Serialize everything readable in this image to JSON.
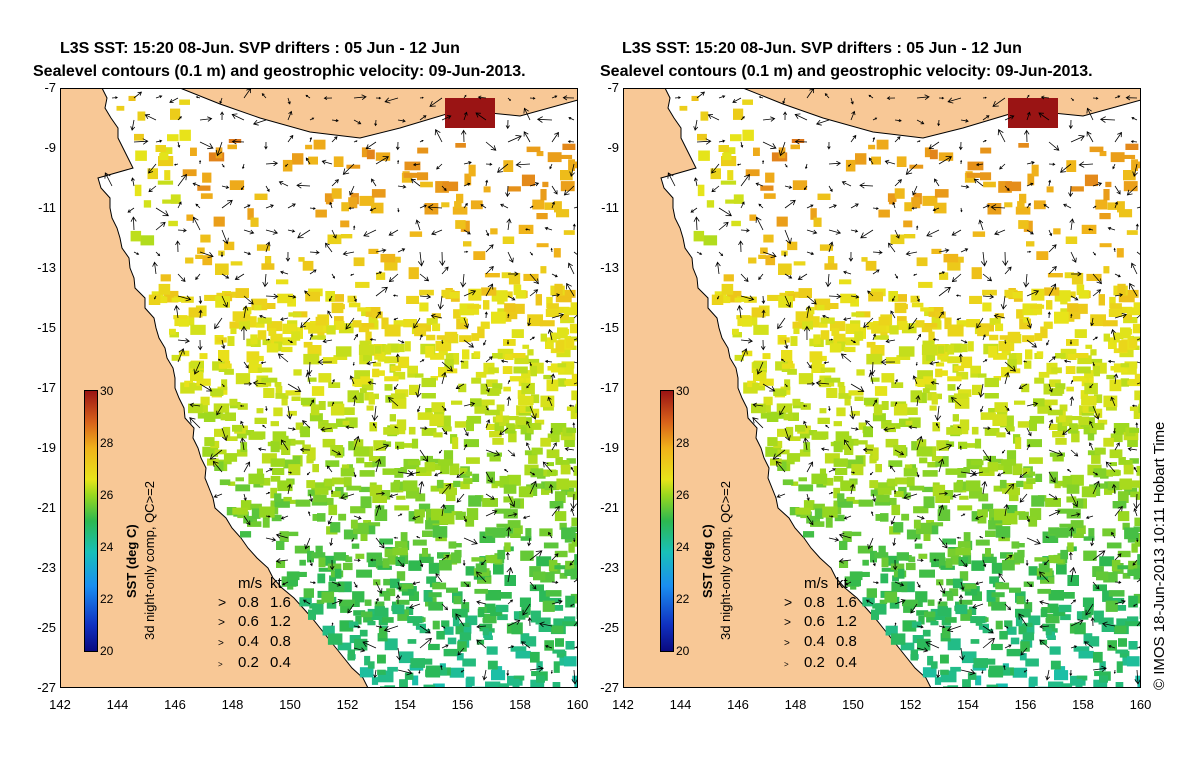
{
  "title_line1": "L3S SST: 15:20 08-Jun. SVP drifters : 05 Jun - 12 Jun",
  "title_line2": "Sealevel contours (0.1 m) and geostrophic velocity: 09-Jun-2013.",
  "panels": [
    {
      "id": "left"
    },
    {
      "id": "right"
    }
  ],
  "map": {
    "lon_range": [
      142,
      160
    ],
    "lat_range": [
      -27,
      -7
    ],
    "x_ticks": [
      "142",
      "144",
      "146",
      "148",
      "150",
      "152",
      "154",
      "156",
      "158",
      "160"
    ],
    "y_ticks": [
      "-7",
      "-9",
      "-11",
      "-13",
      "-15",
      "-17",
      "-19",
      "-21",
      "-23",
      "-25",
      "-27"
    ]
  },
  "colorbar": {
    "title_line1": "SST (deg C)",
    "title_line2": "3d night-only comp, QC>=2",
    "ticks": [
      "30",
      "28",
      "26",
      "24",
      "22",
      "20"
    ],
    "range": [
      20,
      30
    ]
  },
  "velocity_legend": {
    "header": [
      "m/s",
      "kt"
    ],
    "rows": [
      [
        "0.8",
        "1.6"
      ],
      [
        "0.6",
        "1.2"
      ],
      [
        "0.4",
        "0.8"
      ],
      [
        "0.2",
        "0.4"
      ]
    ]
  },
  "credit": "© IMOS 18-Jun-2013 10:11 Hobart Time",
  "colors": {
    "land": "#f8c896",
    "coast": "#000000",
    "ocean_missing": "#ffffff"
  }
}
